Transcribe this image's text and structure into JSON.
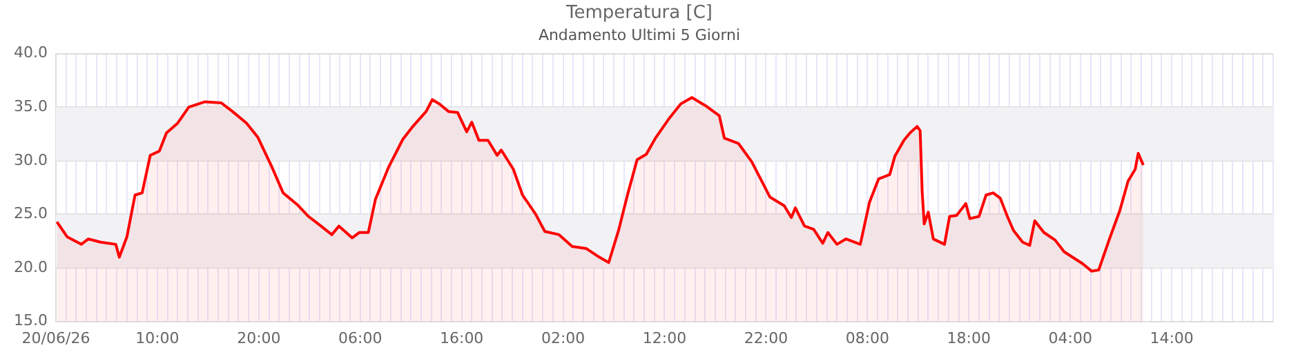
{
  "chart_data": {
    "type": "area",
    "title": "Temperatura [C]",
    "subtitle": "Andamento Ultimi 5 Giorni",
    "series": [
      {
        "color": "#ff0000",
        "x": [
          "--06-20T00:06",
          "--06-20T01:06",
          "--06-20T02:30",
          "--06-20T03:12",
          "--06-20T04:24",
          "--06-20T05:54",
          "--06-20T06:15",
          "--06-20T07:00",
          "--06-20T07:48",
          "--06-20T08:30",
          "--06-20T09:18",
          "--06-20T10:12",
          "--06-20T10:54",
          "--06-20T12:00",
          "--06-20T13:06",
          "--06-20T14:42",
          "--06-20T16:18",
          "--06-20T17:24",
          "--06-20T18:48",
          "--06-20T19:54",
          "--06-20T21:18",
          "--06-20T22:24",
          "--06-20T23:48",
          "--06-21T00:54",
          "--06-21T02:00",
          "--06-21T03:12",
          "--06-21T03:54",
          "--06-21T05:12",
          "--06-21T05:54",
          "--06-21T06:48",
          "--06-21T07:30",
          "--06-21T08:48",
          "--06-21T10:12",
          "--06-21T11:06",
          "--06-21T12:30",
          "--06-21T13:06",
          "--06-21T13:48",
          "--06-21T14:42",
          "--06-21T15:36",
          "--06-21T16:30",
          "--06-21T17:00",
          "--06-21T17:42",
          "--06-21T18:36",
          "--06-21T19:30",
          "--06-21T19:54",
          "--06-21T21:06",
          "--06-21T22:00",
          "--06-21T23:18",
          "--06-22T00:12",
          "--06-22T01:36",
          "--06-22T02:54",
          "--06-22T04:18",
          "--06-22T05:24",
          "--06-22T06:30",
          "--06-22T07:30",
          "--06-22T08:24",
          "--06-22T09:18",
          "--06-22T10:12",
          "--06-22T11:06",
          "--06-22T12:30",
          "--06-22T13:36",
          "--06-22T14:42",
          "--06-22T16:06",
          "--06-22T17:24",
          "--06-22T17:54",
          "--06-22T19:18",
          "--06-22T20:36",
          "--06-22T22:24",
          "--06-22T23:48",
          "--06-23T00:30",
          "--06-23T00:54",
          "--06-23T01:48",
          "--06-23T02:42",
          "--06-23T03:36",
          "--06-23T04:06",
          "--06-23T05:00",
          "--06-23T05:54",
          "--06-23T07:18",
          "--06-23T08:12",
          "--06-23T09:06",
          "--06-23T10:12",
          "--06-23T10:42",
          "--06-23T11:36",
          "--06-23T12:12",
          "--06-23T12:54",
          "--06-23T13:12",
          "--06-23T13:24",
          "--06-23T13:36",
          "--06-23T14:00",
          "--06-23T14:30",
          "--06-23T15:36",
          "--06-23T16:06",
          "--06-23T16:48",
          "--06-23T17:42",
          "--06-23T18:06",
          "--06-23T19:00",
          "--06-23T19:42",
          "--06-23T20:24",
          "--06-23T21:06",
          "--06-23T21:48",
          "--06-23T22:24",
          "--06-23T23:18",
          "--06-24T00:00",
          "--06-24T00:30",
          "--06-24T01:24",
          "--06-24T02:30",
          "--06-24T03:24",
          "--06-24T05:12",
          "--06-24T06:06",
          "--06-24T06:48",
          "--06-24T07:54",
          "--06-24T08:54",
          "--06-24T09:42",
          "--06-24T10:24",
          "--06-24T10:42",
          "--06-24T11:12"
        ],
        "values": [
          24.3,
          22.9,
          22.2,
          22.7,
          22.4,
          22.2,
          21.0,
          22.9,
          26.8,
          27.0,
          30.5,
          30.9,
          32.6,
          33.5,
          35.0,
          35.5,
          35.4,
          34.6,
          33.5,
          32.2,
          29.4,
          27.0,
          25.9,
          24.8,
          24.0,
          23.1,
          23.9,
          22.8,
          23.3,
          23.3,
          26.4,
          29.4,
          32.0,
          33.1,
          34.6,
          35.7,
          35.3,
          34.6,
          34.5,
          32.7,
          33.6,
          31.9,
          31.9,
          30.5,
          31.0,
          29.2,
          26.8,
          25.0,
          23.4,
          23.1,
          22.0,
          21.8,
          21.1,
          20.5,
          23.6,
          27.0,
          30.1,
          30.6,
          32.1,
          34.0,
          35.3,
          35.9,
          35.1,
          34.2,
          32.1,
          31.6,
          29.9,
          26.6,
          25.8,
          24.7,
          25.6,
          23.9,
          23.6,
          22.3,
          23.3,
          22.2,
          22.7,
          22.2,
          26.1,
          28.3,
          28.7,
          30.4,
          31.9,
          32.6,
          33.2,
          32.8,
          27.1,
          24.1,
          25.2,
          22.7,
          22.2,
          24.8,
          24.9,
          26.0,
          24.6,
          24.8,
          26.8,
          27.0,
          26.5,
          24.8,
          23.5,
          22.4,
          22.1,
          24.4,
          23.3,
          22.6,
          21.5,
          20.4,
          19.7,
          19.8,
          22.8,
          25.4,
          28.1,
          29.2,
          30.7,
          29.6
        ]
      }
    ],
    "xlim": [
      "--06-20T00:00",
      "--06-25T00:00"
    ],
    "xticks": [
      {
        "value": "--06-20T00:00",
        "label": "20/06/26"
      },
      {
        "value": "--06-20T01:00",
        "label": null
      },
      {
        "value": "--06-20T02:00",
        "label": null
      },
      {
        "value": "--06-20T03:00",
        "label": null
      },
      {
        "value": "--06-20T04:00",
        "label": null
      },
      {
        "value": "--06-20T05:00",
        "label": null
      },
      {
        "value": "--06-20T06:00",
        "label": null
      },
      {
        "value": "--06-20T07:00",
        "label": null
      },
      {
        "value": "--06-20T08:00",
        "label": null
      },
      {
        "value": "--06-20T09:00",
        "label": null
      },
      {
        "value": "--06-20T10:00",
        "label": "10:00"
      },
      {
        "value": "--06-20T11:00",
        "label": null
      },
      {
        "value": "--06-20T12:00",
        "label": null
      },
      {
        "value": "--06-20T13:00",
        "label": null
      },
      {
        "value": "--06-20T14:00",
        "label": null
      },
      {
        "value": "--06-20T15:00",
        "label": null
      },
      {
        "value": "--06-20T16:00",
        "label": null
      },
      {
        "value": "--06-20T17:00",
        "label": null
      },
      {
        "value": "--06-20T18:00",
        "label": null
      },
      {
        "value": "--06-20T19:00",
        "label": null
      },
      {
        "value": "--06-20T20:00",
        "label": "20:00"
      },
      {
        "value": "--06-20T21:00",
        "label": null
      },
      {
        "value": "--06-20T22:00",
        "label": null
      },
      {
        "value": "--06-20T23:00",
        "label": null
      },
      {
        "value": "--06-21T00:00",
        "label": null
      },
      {
        "value": "--06-21T01:00",
        "label": null
      },
      {
        "value": "--06-21T02:00",
        "label": null
      },
      {
        "value": "--06-21T03:00",
        "label": null
      },
      {
        "value": "--06-21T04:00",
        "label": null
      },
      {
        "value": "--06-21T05:00",
        "label": null
      },
      {
        "value": "--06-21T06:00",
        "label": "06:00"
      },
      {
        "value": "--06-21T07:00",
        "label": null
      },
      {
        "value": "--06-21T08:00",
        "label": null
      },
      {
        "value": "--06-21T09:00",
        "label": null
      },
      {
        "value": "--06-21T10:00",
        "label": null
      },
      {
        "value": "--06-21T11:00",
        "label": null
      },
      {
        "value": "--06-21T12:00",
        "label": null
      },
      {
        "value": "--06-21T13:00",
        "label": null
      },
      {
        "value": "--06-21T14:00",
        "label": null
      },
      {
        "value": "--06-21T15:00",
        "label": null
      },
      {
        "value": "--06-21T16:00",
        "label": "16:00"
      },
      {
        "value": "--06-21T17:00",
        "label": null
      },
      {
        "value": "--06-21T18:00",
        "label": null
      },
      {
        "value": "--06-21T19:00",
        "label": null
      },
      {
        "value": "--06-21T20:00",
        "label": null
      },
      {
        "value": "--06-21T21:00",
        "label": null
      },
      {
        "value": "--06-21T22:00",
        "label": null
      },
      {
        "value": "--06-21T23:00",
        "label": null
      },
      {
        "value": "--06-22T00:00",
        "label": null
      },
      {
        "value": "--06-22T01:00",
        "label": null
      },
      {
        "value": "--06-22T02:00",
        "label": "02:00"
      },
      {
        "value": "--06-22T03:00",
        "label": null
      },
      {
        "value": "--06-22T04:00",
        "label": null
      },
      {
        "value": "--06-22T05:00",
        "label": null
      },
      {
        "value": "--06-22T06:00",
        "label": null
      },
      {
        "value": "--06-22T07:00",
        "label": null
      },
      {
        "value": "--06-22T08:00",
        "label": null
      },
      {
        "value": "--06-22T09:00",
        "label": null
      },
      {
        "value": "--06-22T10:00",
        "label": null
      },
      {
        "value": "--06-22T11:00",
        "label": null
      },
      {
        "value": "--06-22T12:00",
        "label": "12:00"
      },
      {
        "value": "--06-22T13:00",
        "label": null
      },
      {
        "value": "--06-22T14:00",
        "label": null
      },
      {
        "value": "--06-22T15:00",
        "label": null
      },
      {
        "value": "--06-22T16:00",
        "label": null
      },
      {
        "value": "--06-22T17:00",
        "label": null
      },
      {
        "value": "--06-22T18:00",
        "label": null
      },
      {
        "value": "--06-22T19:00",
        "label": null
      },
      {
        "value": "--06-22T20:00",
        "label": null
      },
      {
        "value": "--06-22T21:00",
        "label": null
      },
      {
        "value": "--06-22T22:00",
        "label": "22:00"
      },
      {
        "value": "--06-22T23:00",
        "label": null
      },
      {
        "value": "--06-23T00:00",
        "label": null
      },
      {
        "value": "--06-23T01:00",
        "label": null
      },
      {
        "value": "--06-23T02:00",
        "label": null
      },
      {
        "value": "--06-23T03:00",
        "label": null
      },
      {
        "value": "--06-23T04:00",
        "label": null
      },
      {
        "value": "--06-23T05:00",
        "label": null
      },
      {
        "value": "--06-23T06:00",
        "label": null
      },
      {
        "value": "--06-23T07:00",
        "label": null
      },
      {
        "value": "--06-23T08:00",
        "label": "08:00"
      },
      {
        "value": "--06-23T09:00",
        "label": null
      },
      {
        "value": "--06-23T10:00",
        "label": null
      },
      {
        "value": "--06-23T11:00",
        "label": null
      },
      {
        "value": "--06-23T12:00",
        "label": null
      },
      {
        "value": "--06-23T13:00",
        "label": null
      },
      {
        "value": "--06-23T14:00",
        "label": null
      },
      {
        "value": "--06-23T15:00",
        "label": null
      },
      {
        "value": "--06-23T16:00",
        "label": null
      },
      {
        "value": "--06-23T17:00",
        "label": null
      },
      {
        "value": "--06-23T18:00",
        "label": "18:00"
      },
      {
        "value": "--06-23T19:00",
        "label": null
      },
      {
        "value": "--06-23T20:00",
        "label": null
      },
      {
        "value": "--06-23T21:00",
        "label": null
      },
      {
        "value": "--06-23T22:00",
        "label": null
      },
      {
        "value": "--06-23T23:00",
        "label": null
      },
      {
        "value": "--06-24T00:00",
        "label": null
      },
      {
        "value": "--06-24T01:00",
        "label": null
      },
      {
        "value": "--06-24T02:00",
        "label": null
      },
      {
        "value": "--06-24T03:00",
        "label": null
      },
      {
        "value": "--06-24T04:00",
        "label": "04:00"
      },
      {
        "value": "--06-24T05:00",
        "label": null
      },
      {
        "value": "--06-24T06:00",
        "label": null
      },
      {
        "value": "--06-24T07:00",
        "label": null
      },
      {
        "value": "--06-24T08:00",
        "label": null
      },
      {
        "value": "--06-24T09:00",
        "label": null
      },
      {
        "value": "--06-24T10:00",
        "label": null
      },
      {
        "value": "--06-24T11:00",
        "label": null
      },
      {
        "value": "--06-24T12:00",
        "label": null
      },
      {
        "value": "--06-24T13:00",
        "label": null
      },
      {
        "value": "--06-24T14:00",
        "label": "14:00"
      },
      {
        "value": "--06-24T15:00",
        "label": null
      },
      {
        "value": "--06-24T16:00",
        "label": null
      },
      {
        "value": "--06-24T17:00",
        "label": null
      },
      {
        "value": "--06-24T18:00",
        "label": null
      },
      {
        "value": "--06-24T19:00",
        "label": null
      },
      {
        "value": "--06-24T20:00",
        "label": null
      },
      {
        "value": "--06-24T21:00",
        "label": null
      },
      {
        "value": "--06-24T22:00",
        "label": null
      },
      {
        "value": "--06-24T23:00",
        "label": null
      },
      {
        "value": "--06-25T00:00",
        "label": null
      }
    ],
    "ylim": [
      15,
      40
    ],
    "yticks": [
      {
        "value": 15,
        "label": "15.0"
      },
      {
        "value": 20,
        "label": "20.0"
      },
      {
        "value": 25,
        "label": "25.0"
      },
      {
        "value": 30,
        "label": "30.0"
      },
      {
        "value": 35,
        "label": "35.0"
      },
      {
        "value": 40,
        "label": "40.0"
      }
    ],
    "bands": [
      {
        "axis": "y",
        "from": 20,
        "to": 25,
        "color": "#f2f2f5"
      },
      {
        "axis": "y",
        "from": 30,
        "to": 35,
        "color": "#f2f2f5"
      }
    ],
    "grid": true,
    "legend": false,
    "marker": "none",
    "line_style": "solid"
  }
}
